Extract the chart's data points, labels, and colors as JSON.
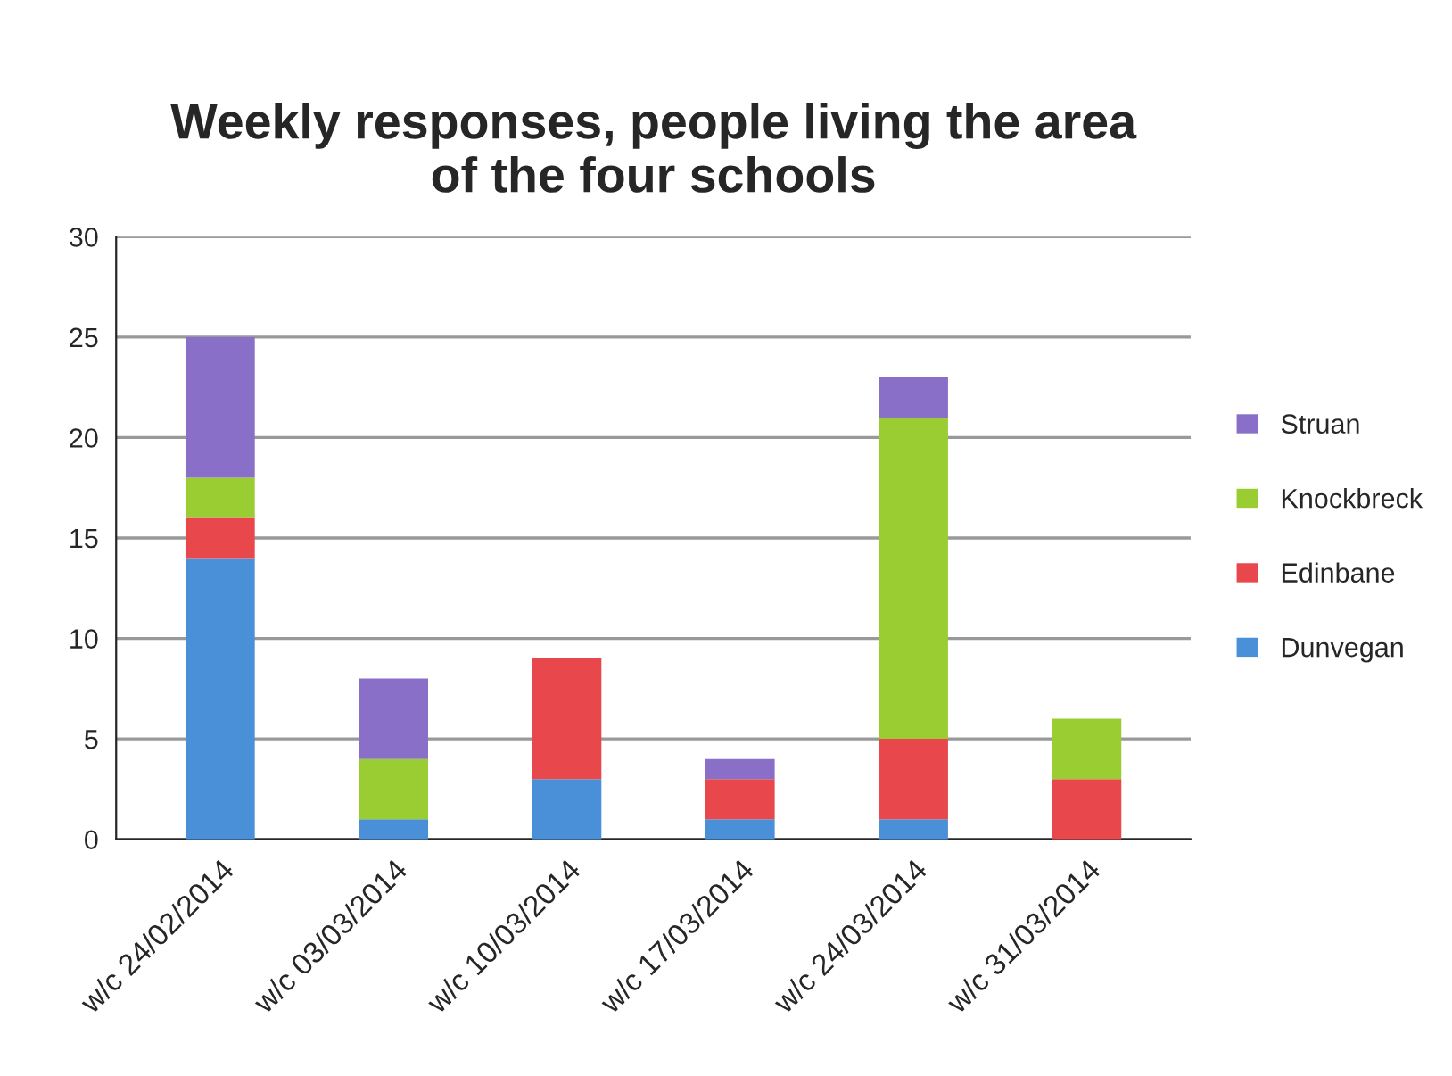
{
  "chart_data": {
    "type": "bar",
    "title": "Weekly responses, people living the area\nof the four schools",
    "categories": [
      "w/c 24/02/2014",
      "w/c 03/03/2014",
      "w/c 10/03/2014",
      "w/c 17/03/2014",
      "w/c 24/03/2014",
      "w/c 31/03/2014"
    ],
    "stacked": true,
    "series": [
      {
        "name": "Dunvegan",
        "color": "#4a90d9",
        "values": [
          14,
          1,
          3,
          1,
          1,
          0
        ]
      },
      {
        "name": "Edinbane",
        "color": "#e8474c",
        "values": [
          2,
          0,
          6,
          2,
          4,
          3
        ]
      },
      {
        "name": "Knockbreck",
        "color": "#9acd32",
        "values": [
          2,
          3,
          0,
          0,
          16,
          3
        ]
      },
      {
        "name": "Struan",
        "color": "#8a6fc8",
        "values": [
          7,
          4,
          0,
          1,
          2,
          0
        ]
      }
    ],
    "ylim": [
      0,
      30
    ],
    "yticks": [
      0,
      5,
      10,
      15,
      20,
      25,
      30
    ],
    "grid": "y",
    "legend": "right"
  }
}
